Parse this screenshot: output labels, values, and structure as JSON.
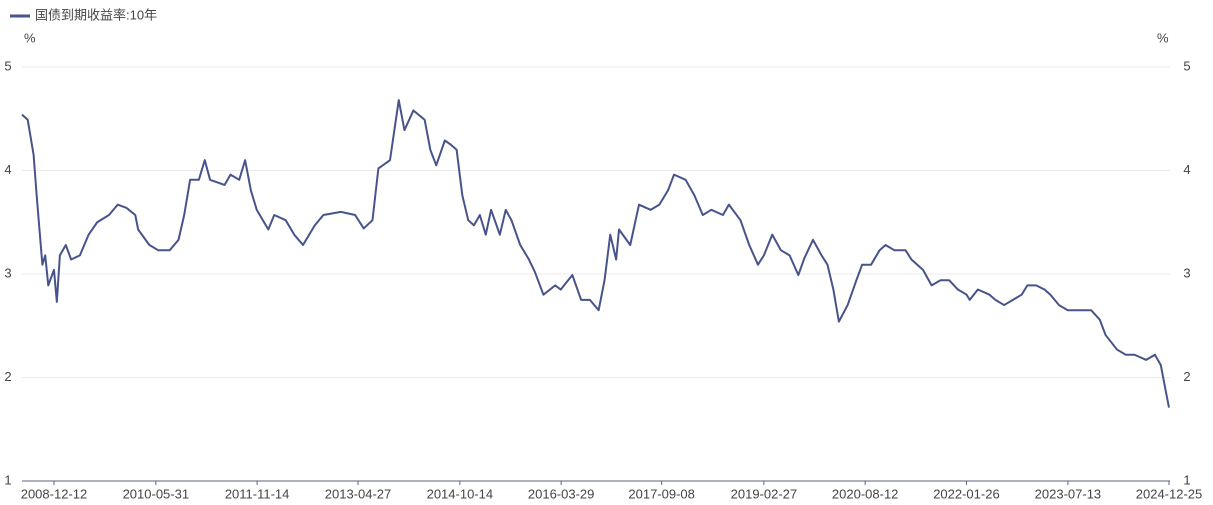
{
  "chart_data": {
    "type": "line",
    "legend": "国债到期收益率:10年",
    "unit": "%",
    "x": [
      "2008-06-27",
      "2008-07-27",
      "2008-08-27",
      "2008-09-12",
      "2008-10-12",
      "2008-10-27",
      "2008-11-12",
      "2008-12-12",
      "2008-12-27",
      "2009-01-12",
      "2009-02-12",
      "2009-03-12",
      "2009-04-27",
      "2009-06-12",
      "2009-07-27",
      "2009-09-27",
      "2009-11-12",
      "2009-12-27",
      "2010-02-12",
      "2010-02-27",
      "2010-04-27",
      "2010-06-12",
      "2010-08-12",
      "2010-09-27",
      "2010-10-27",
      "2010-11-27",
      "2011-01-12",
      "2011-02-12",
      "2011-03-12",
      "2011-05-27",
      "2011-06-27",
      "2011-08-12",
      "2011-09-12",
      "2011-10-12",
      "2011-11-12",
      "2012-01-12",
      "2012-02-12",
      "2012-04-12",
      "2012-05-27",
      "2012-07-12",
      "2012-09-12",
      "2012-10-27",
      "2013-01-27",
      "2013-04-12",
      "2013-05-27",
      "2013-07-12",
      "2013-08-12",
      "2013-10-12",
      "2013-11-27",
      "2013-12-27",
      "2014-02-12",
      "2014-04-12",
      "2014-05-12",
      "2014-06-12",
      "2014-07-27",
      "2014-08-27",
      "2014-09-27",
      "2014-10-27",
      "2014-11-27",
      "2014-12-27",
      "2015-01-27",
      "2015-02-27",
      "2015-03-27",
      "2015-05-12",
      "2015-06-12",
      "2015-07-12",
      "2015-08-27",
      "2015-10-12",
      "2015-11-12",
      "2015-12-27",
      "2016-02-27",
      "2016-03-27",
      "2016-05-27",
      "2016-07-12",
      "2016-08-27",
      "2016-10-12",
      "2016-11-12",
      "2016-12-12",
      "2017-01-12",
      "2017-01-27",
      "2017-03-27",
      "2017-05-12",
      "2017-07-12",
      "2017-08-27",
      "2017-10-12",
      "2017-11-12",
      "2018-01-12",
      "2018-02-27",
      "2018-04-12",
      "2018-05-27",
      "2018-07-27",
      "2018-08-27",
      "2018-10-27",
      "2018-12-12",
      "2019-01-27",
      "2019-02-27",
      "2019-04-12",
      "2019-05-27",
      "2019-07-12",
      "2019-08-27",
      "2019-09-27",
      "2019-11-12",
      "2019-12-27",
      "2020-01-27",
      "2020-02-27",
      "2020-03-27",
      "2020-05-12",
      "2020-06-27",
      "2020-07-27",
      "2020-09-12",
      "2020-10-27",
      "2020-11-27",
      "2021-01-12",
      "2021-03-12",
      "2021-04-12",
      "2021-06-12",
      "2021-07-27",
      "2021-09-12",
      "2021-10-27",
      "2021-12-12",
      "2022-01-27",
      "2022-02-12",
      "2022-03-27",
      "2022-05-27",
      "2022-06-27",
      "2022-08-12",
      "2022-09-27",
      "2022-11-12",
      "2022-12-12",
      "2023-01-27",
      "2023-03-12",
      "2023-04-12",
      "2023-05-27",
      "2023-07-12",
      "2023-09-12",
      "2023-11-12",
      "2023-12-27",
      "2024-01-27",
      "2024-03-27",
      "2024-05-12",
      "2024-06-27",
      "2024-08-27",
      "2024-10-12",
      "2024-11-12",
      "2024-12-12",
      "2024-12-25"
    ],
    "series": [
      {
        "name": "国债到期收益率:10年",
        "color": "#48538c",
        "values": [
          4.54,
          4.49,
          4.15,
          3.76,
          3.09,
          3.18,
          2.89,
          3.04,
          2.73,
          3.18,
          3.28,
          3.14,
          3.18,
          3.38,
          3.5,
          3.57,
          3.67,
          3.64,
          3.57,
          3.43,
          3.28,
          3.23,
          3.23,
          3.33,
          3.57,
          3.91,
          3.91,
          4.1,
          3.91,
          3.86,
          3.96,
          3.91,
          4.1,
          3.81,
          3.62,
          3.43,
          3.57,
          3.52,
          3.38,
          3.28,
          3.47,
          3.57,
          3.6,
          3.57,
          3.44,
          3.52,
          4.02,
          4.1,
          4.68,
          4.39,
          4.58,
          4.49,
          4.2,
          4.05,
          4.29,
          4.25,
          4.2,
          3.76,
          3.52,
          3.47,
          3.57,
          3.38,
          3.62,
          3.38,
          3.62,
          3.52,
          3.28,
          3.14,
          3.02,
          2.8,
          2.89,
          2.85,
          2.99,
          2.75,
          2.75,
          2.65,
          2.94,
          3.38,
          3.14,
          3.43,
          3.28,
          3.67,
          3.62,
          3.67,
          3.81,
          3.96,
          3.91,
          3.76,
          3.57,
          3.62,
          3.57,
          3.67,
          3.52,
          3.28,
          3.09,
          3.18,
          3.38,
          3.23,
          3.18,
          2.99,
          3.15,
          3.33,
          3.18,
          3.09,
          2.85,
          2.54,
          2.7,
          2.94,
          3.09,
          3.09,
          3.23,
          3.28,
          3.23,
          3.23,
          3.14,
          3.04,
          2.89,
          2.94,
          2.94,
          2.85,
          2.8,
          2.75,
          2.85,
          2.8,
          2.75,
          2.7,
          2.75,
          2.8,
          2.89,
          2.89,
          2.85,
          2.8,
          2.7,
          2.65,
          2.65,
          2.65,
          2.56,
          2.41,
          2.27,
          2.22,
          2.22,
          2.17,
          2.22,
          2.12,
          1.83,
          1.71
        ]
      }
    ],
    "xlim": [
      "2008-06-27",
      "2024-12-25"
    ],
    "xticks": [
      "2008-12-12",
      "2010-05-31",
      "2011-11-14",
      "2013-04-27",
      "2014-10-14",
      "2016-03-29",
      "2017-09-08",
      "2019-02-27",
      "2020-08-12",
      "2022-01-26",
      "2023-07-13",
      "2024-12-25"
    ],
    "ylim": [
      1,
      5
    ],
    "yticks": [
      1,
      2,
      3,
      4,
      5
    ],
    "grid": true
  }
}
